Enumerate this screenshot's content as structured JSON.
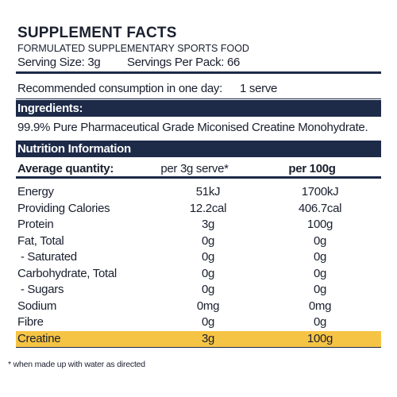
{
  "header": {
    "title": "SUPPLEMENT FACTS",
    "subtitle": "FORMULATED SUPPLEMENTARY SPORTS FOOD",
    "serving_size": "Serving Size: 3g",
    "servings_per_pack": "Servings Per Pack: 66"
  },
  "recommended": {
    "label": "Recommended consumption in one day:",
    "value": "1 serve"
  },
  "ingredients": {
    "heading": "Ingredients:",
    "text": "99.9% Pure Pharmaceutical Grade Miconised Creatine Monohydrate."
  },
  "nutrition": {
    "heading": "Nutrition Information",
    "columns": [
      "Average quantity:",
      "per 3g serve*",
      "per 100g"
    ],
    "rows": [
      [
        "Energy",
        "51kJ",
        "1700kJ"
      ],
      [
        "Providing Calories",
        "12.2cal",
        "406.7cal"
      ],
      [
        "Protein",
        "3g",
        "100g"
      ],
      [
        "Fat, Total",
        "0g",
        "0g"
      ],
      [
        " - Saturated",
        "0g",
        "0g"
      ],
      [
        "Carbohydrate, Total",
        "0g",
        "0g"
      ],
      [
        " - Sugars",
        "0g",
        "0g"
      ],
      [
        "Sodium",
        "0mg",
        "0mg"
      ],
      [
        "Fibre",
        "0g",
        "0g"
      ],
      [
        "Creatine",
        "3g",
        "100g"
      ]
    ]
  },
  "footnote": "* when made up with water as directed"
}
